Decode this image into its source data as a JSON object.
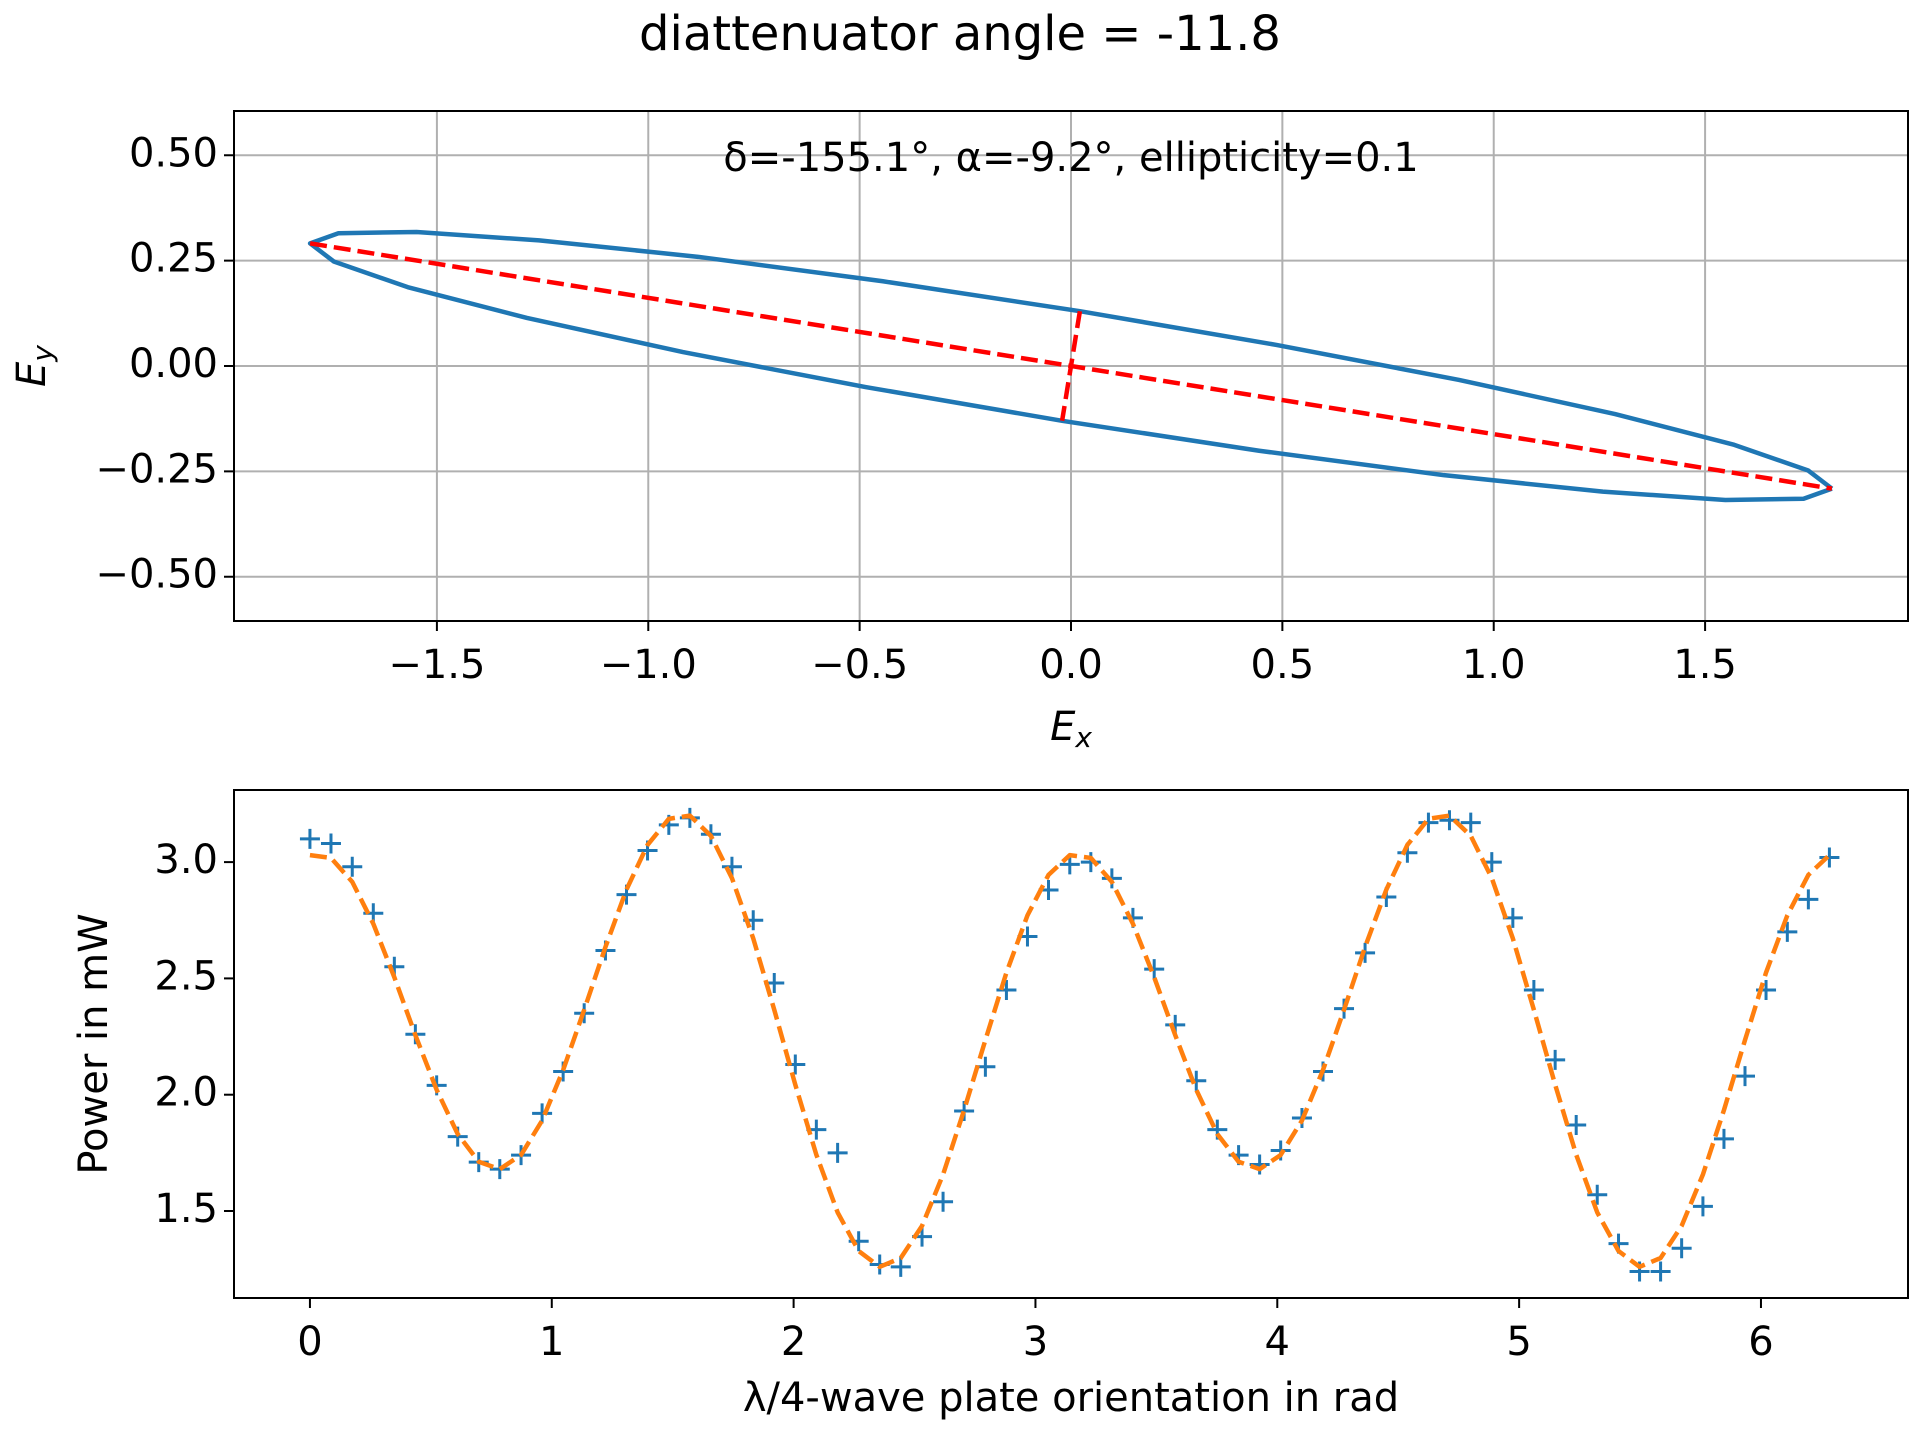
{
  "title": "diattenuator angle = -11.8",
  "chart_data": [
    {
      "type": "line",
      "annotation": "δ=-155.1°, α=-9.2°, ellipticity=0.1",
      "xlabel": {
        "text": "E",
        "sub": "x"
      },
      "ylabel": {
        "text": "E",
        "sub": "y"
      },
      "xlim": [
        -1.98,
        1.98
      ],
      "ylim": [
        -0.605,
        0.605
      ],
      "xticks": [
        {
          "value": -1.5,
          "label": "−1.5"
        },
        {
          "value": -1.0,
          "label": "−1.0"
        },
        {
          "value": -0.5,
          "label": "−0.5"
        },
        {
          "value": 0,
          "label": "0.0"
        },
        0.5,
        {
          "value": 1,
          "label": "1.0"
        },
        1.5
      ],
      "yticks": [
        {
          "value": -0.5,
          "label": "−0.50"
        },
        {
          "value": -0.25,
          "label": "−0.25"
        },
        {
          "value": 0,
          "label": "0.00"
        },
        0.25,
        {
          "value": 0.5,
          "label": "0.50"
        }
      ],
      "grid": true,
      "series": [
        {
          "color": "#1f77b4",
          "linestyle": "solid",
          "x": [
            1.8,
            1.744,
            1.569,
            1.287,
            0.918,
            0.486,
            0.021,
            -0.445,
            -0.882,
            -1.258,
            -1.548,
            -1.733,
            -1.8,
            -1.744,
            -1.569,
            -1.287,
            -0.918,
            -0.486,
            -0.021,
            0.445,
            0.882,
            1.258,
            1.548,
            1.733,
            1.8
          ],
          "values": [
            -0.291,
            -0.248,
            -0.187,
            -0.114,
            -0.033,
            0.05,
            0.13,
            0.201,
            0.259,
            0.298,
            0.318,
            0.315,
            0.291,
            0.248,
            0.187,
            0.114,
            0.033,
            -0.05,
            -0.13,
            -0.201,
            -0.259,
            -0.298,
            -0.318,
            -0.315,
            -0.291
          ]
        },
        {
          "color": "#ff0000",
          "linestyle": "dashed",
          "x": [
            -1.8,
            1.8,
            null,
            0.021,
            -0.021
          ],
          "values": [
            0.291,
            -0.291,
            null,
            0.13,
            -0.13
          ]
        }
      ]
    },
    {
      "type": "scatter",
      "xlabel": "λ/4-wave plate orientation in rad",
      "ylabel": "Power in mW",
      "xlim": [
        -0.314,
        6.608
      ],
      "ylim": [
        1.126,
        3.31
      ],
      "xticks": [
        0,
        1,
        2,
        3,
        4,
        5,
        6
      ],
      "yticks": [
        1.5,
        {
          "value": 2,
          "label": "2.0"
        },
        2.5,
        {
          "value": 3,
          "label": "3.0"
        }
      ],
      "grid": false,
      "x": [
        0,
        0.087,
        0.175,
        0.262,
        0.349,
        0.436,
        0.524,
        0.611,
        0.698,
        0.785,
        0.873,
        0.96,
        1.047,
        1.134,
        1.222,
        1.309,
        1.396,
        1.484,
        1.571,
        1.658,
        1.745,
        1.833,
        1.92,
        2.007,
        2.094,
        2.182,
        2.269,
        2.356,
        2.443,
        2.531,
        2.618,
        2.705,
        2.793,
        2.88,
        2.967,
        3.054,
        3.142,
        3.229,
        3.316,
        3.403,
        3.491,
        3.578,
        3.665,
        3.752,
        3.84,
        3.927,
        4.014,
        4.102,
        4.189,
        4.276,
        4.363,
        4.451,
        4.538,
        4.625,
        4.712,
        4.8,
        4.887,
        4.974,
        5.061,
        5.149,
        5.236,
        5.323,
        5.411,
        5.498,
        5.585,
        5.672,
        5.76,
        5.847,
        5.934,
        6.021,
        6.109,
        6.196,
        6.283
      ],
      "series": [
        {
          "kind": "marker",
          "marker": "+",
          "color": "#1f77b4",
          "values": [
            3.1,
            3.08,
            2.98,
            2.78,
            2.55,
            2.26,
            2.04,
            1.82,
            1.71,
            1.68,
            1.74,
            1.92,
            2.1,
            2.35,
            2.62,
            2.86,
            3.05,
            3.16,
            3.19,
            3.12,
            2.98,
            2.75,
            2.48,
            2.13,
            1.85,
            1.75,
            1.37,
            1.27,
            1.26,
            1.39,
            1.54,
            1.93,
            2.12,
            2.45,
            2.68,
            2.88,
            2.99,
            3.0,
            2.93,
            2.76,
            2.54,
            2.3,
            2.06,
            1.85,
            1.74,
            1.7,
            1.76,
            1.9,
            2.1,
            2.37,
            2.61,
            2.85,
            3.04,
            3.17,
            3.18,
            3.17,
            3.0,
            2.76,
            2.45,
            2.15,
            1.87,
            1.57,
            1.36,
            1.24,
            1.24,
            1.34,
            1.52,
            1.81,
            2.08,
            2.45,
            2.7,
            2.84,
            3.02
          ]
        },
        {
          "kind": "line",
          "linestyle": "dashed",
          "color": "#ff7f0e",
          "values": [
            3.03,
            3.018,
            2.915,
            2.735,
            2.505,
            2.256,
            2.021,
            1.831,
            1.712,
            1.68,
            1.741,
            1.889,
            2.106,
            2.365,
            2.635,
            2.882,
            3.074,
            3.186,
            3.2,
            3.113,
            2.931,
            2.672,
            2.365,
            2.043,
            1.742,
            1.494,
            1.328,
            1.26,
            1.298,
            1.436,
            1.657,
            1.934,
            2.235,
            2.525,
            2.771,
            2.945,
            3.03,
            3.018,
            2.915,
            2.735,
            2.505,
            2.256,
            2.021,
            1.831,
            1.712,
            1.68,
            1.741,
            1.889,
            2.106,
            2.365,
            2.635,
            2.882,
            3.074,
            3.186,
            3.2,
            3.113,
            2.931,
            2.672,
            2.365,
            2.043,
            1.742,
            1.494,
            1.328,
            1.26,
            1.298,
            1.436,
            1.657,
            1.934,
            2.235,
            2.525,
            2.771,
            2.945,
            3.03
          ]
        }
      ]
    }
  ]
}
